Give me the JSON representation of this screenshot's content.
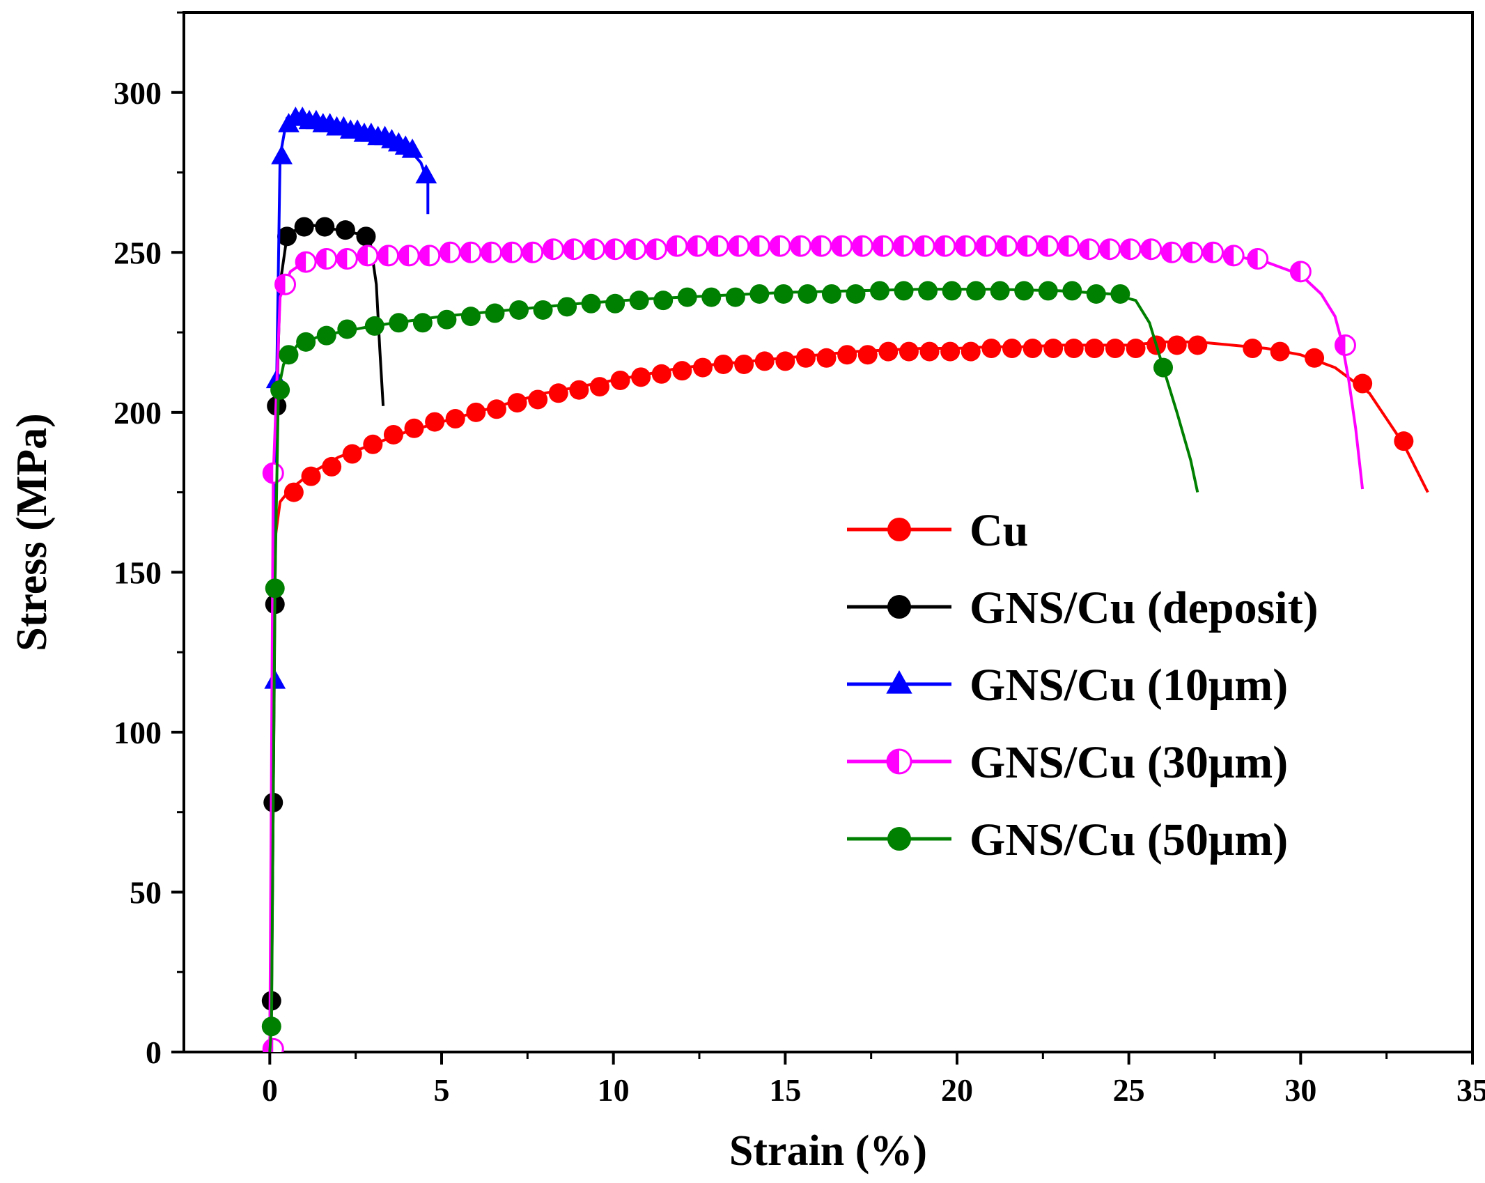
{
  "chart_data": {
    "type": "line",
    "title": "",
    "xlabel": "Strain (%)",
    "ylabel": "Stress (MPa)",
    "xlim": [
      -2.5,
      35
    ],
    "ylim": [
      0,
      325
    ],
    "xticks": [
      0,
      5,
      10,
      15,
      20,
      25,
      30,
      35
    ],
    "yticks": [
      0,
      50,
      100,
      150,
      200,
      250,
      300
    ],
    "legend_position": "right",
    "series": [
      {
        "name": "Cu",
        "color": "#ff0000",
        "marker": "circle",
        "points": [
          [
            0,
            0
          ],
          [
            0.05,
            60
          ],
          [
            0.1,
            120
          ],
          [
            0.15,
            160
          ],
          [
            0.3,
            172
          ],
          [
            0.6,
            176
          ],
          [
            1.2,
            181
          ],
          [
            2,
            186
          ],
          [
            3,
            190
          ],
          [
            4,
            194
          ],
          [
            5,
            197
          ],
          [
            6,
            200
          ],
          [
            7,
            203
          ],
          [
            8,
            206
          ],
          [
            9,
            208
          ],
          [
            10,
            210
          ],
          [
            11,
            212
          ],
          [
            12,
            214
          ],
          [
            13,
            215
          ],
          [
            14,
            216
          ],
          [
            15,
            217
          ],
          [
            16,
            218
          ],
          [
            17,
            219
          ],
          [
            18,
            219.5
          ],
          [
            19,
            220
          ],
          [
            20,
            220
          ],
          [
            21,
            220.5
          ],
          [
            22,
            220.5
          ],
          [
            23,
            221
          ],
          [
            24,
            221
          ],
          [
            25,
            221
          ],
          [
            26,
            222
          ],
          [
            27,
            222
          ],
          [
            28,
            221
          ],
          [
            29,
            220
          ],
          [
            30,
            218
          ],
          [
            31,
            214
          ],
          [
            32,
            206
          ],
          [
            33,
            190
          ],
          [
            33.7,
            175
          ]
        ],
        "marker_points": [
          [
            0.7,
            175
          ],
          [
            1.2,
            180
          ],
          [
            1.8,
            183
          ],
          [
            2.4,
            187
          ],
          [
            3,
            190
          ],
          [
            3.6,
            193
          ],
          [
            4.2,
            195
          ],
          [
            4.8,
            197
          ],
          [
            5.4,
            198
          ],
          [
            6,
            200
          ],
          [
            6.6,
            201
          ],
          [
            7.2,
            203
          ],
          [
            7.8,
            204
          ],
          [
            8.4,
            206
          ],
          [
            9,
            207
          ],
          [
            9.6,
            208
          ],
          [
            10.2,
            210
          ],
          [
            10.8,
            211
          ],
          [
            11.4,
            212
          ],
          [
            12,
            213
          ],
          [
            12.6,
            214
          ],
          [
            13.2,
            215
          ],
          [
            13.8,
            215
          ],
          [
            14.4,
            216
          ],
          [
            15,
            216
          ],
          [
            15.6,
            217
          ],
          [
            16.2,
            217
          ],
          [
            16.8,
            218
          ],
          [
            17.4,
            218
          ],
          [
            18,
            219
          ],
          [
            18.6,
            219
          ],
          [
            19.2,
            219
          ],
          [
            19.8,
            219
          ],
          [
            20.4,
            219
          ],
          [
            21,
            220
          ],
          [
            21.6,
            220
          ],
          [
            22.2,
            220
          ],
          [
            22.8,
            220
          ],
          [
            23.4,
            220
          ],
          [
            24,
            220
          ],
          [
            24.6,
            220
          ],
          [
            25.2,
            220
          ],
          [
            25.8,
            221
          ],
          [
            26.4,
            221
          ],
          [
            27,
            221
          ],
          [
            28.6,
            220
          ],
          [
            29.4,
            219
          ],
          [
            30.4,
            217
          ],
          [
            31.8,
            209
          ],
          [
            33,
            191
          ]
        ]
      },
      {
        "name": "GNS/Cu (deposit)",
        "color": "#000000",
        "marker": "circle",
        "points": [
          [
            0,
            0
          ],
          [
            0.05,
            15
          ],
          [
            0.1,
            78
          ],
          [
            0.15,
            140
          ],
          [
            0.2,
            202
          ],
          [
            0.3,
            240
          ],
          [
            0.5,
            255
          ],
          [
            1,
            259
          ],
          [
            1.5,
            258
          ],
          [
            2,
            257
          ],
          [
            2.5,
            256
          ],
          [
            2.9,
            255
          ],
          [
            3.1,
            240
          ],
          [
            3.2,
            220
          ],
          [
            3.3,
            202
          ]
        ],
        "marker_points": [
          [
            0.05,
            16
          ],
          [
            0.1,
            78
          ],
          [
            0.15,
            140
          ],
          [
            0.2,
            202
          ],
          [
            0.5,
            255
          ],
          [
            1,
            258
          ],
          [
            1.6,
            258
          ],
          [
            2.2,
            257
          ],
          [
            2.8,
            255
          ]
        ]
      },
      {
        "name": "GNS/Cu (10μm)",
        "color": "#0000ff",
        "marker": "triangle",
        "points": [
          [
            0,
            0
          ],
          [
            0.1,
            116
          ],
          [
            0.2,
            210
          ],
          [
            0.3,
            280
          ],
          [
            0.5,
            292
          ],
          [
            1,
            293
          ],
          [
            2,
            290
          ],
          [
            3,
            287
          ],
          [
            4,
            283
          ],
          [
            4.4,
            278
          ],
          [
            4.6,
            272
          ],
          [
            4.6,
            262
          ]
        ],
        "marker_points": [
          [
            0.15,
            116
          ],
          [
            0.2,
            210
          ],
          [
            0.35,
            280
          ],
          [
            0.55,
            290
          ],
          [
            0.75,
            292
          ],
          [
            0.95,
            292
          ],
          [
            1.15,
            291
          ],
          [
            1.35,
            291
          ],
          [
            1.55,
            290
          ],
          [
            1.75,
            290
          ],
          [
            1.95,
            289
          ],
          [
            2.15,
            289
          ],
          [
            2.35,
            288
          ],
          [
            2.55,
            288
          ],
          [
            2.75,
            287
          ],
          [
            2.95,
            287
          ],
          [
            3.15,
            286
          ],
          [
            3.35,
            286
          ],
          [
            3.55,
            285
          ],
          [
            3.75,
            284
          ],
          [
            3.95,
            283
          ],
          [
            4.15,
            282
          ],
          [
            4.55,
            274
          ]
        ]
      },
      {
        "name": "GNS/Cu (30μm)",
        "color": "#ff00ff",
        "marker": "half-circle",
        "points": [
          [
            0,
            0
          ],
          [
            0.1,
            180
          ],
          [
            0.3,
            236
          ],
          [
            0.6,
            244
          ],
          [
            1,
            247
          ],
          [
            2,
            248
          ],
          [
            4,
            249
          ],
          [
            6,
            250
          ],
          [
            8,
            251
          ],
          [
            10,
            251.5
          ],
          [
            12,
            252
          ],
          [
            14,
            252.5
          ],
          [
            16,
            252.5
          ],
          [
            18,
            252.5
          ],
          [
            20,
            252
          ],
          [
            22,
            252
          ],
          [
            24,
            251.5
          ],
          [
            26,
            251
          ],
          [
            28,
            249
          ],
          [
            29,
            247
          ],
          [
            30,
            243
          ],
          [
            30.6,
            237
          ],
          [
            31,
            230
          ],
          [
            31.2,
            222
          ],
          [
            31.4,
            210
          ],
          [
            31.6,
            195
          ],
          [
            31.8,
            176
          ]
        ],
        "marker_points": [
          [
            0.1,
            1
          ],
          [
            0.1,
            181
          ],
          [
            0.45,
            240
          ],
          [
            1.05,
            247
          ],
          [
            1.65,
            248
          ],
          [
            2.25,
            248
          ],
          [
            2.85,
            249
          ],
          [
            3.45,
            249
          ],
          [
            4.05,
            249
          ],
          [
            4.65,
            249
          ],
          [
            5.25,
            250
          ],
          [
            5.85,
            250
          ],
          [
            6.45,
            250
          ],
          [
            7.05,
            250
          ],
          [
            7.65,
            250
          ],
          [
            8.25,
            251
          ],
          [
            8.85,
            251
          ],
          [
            9.45,
            251
          ],
          [
            10.05,
            251
          ],
          [
            10.65,
            251
          ],
          [
            11.25,
            251
          ],
          [
            11.85,
            252
          ],
          [
            12.45,
            252
          ],
          [
            13.05,
            252
          ],
          [
            13.65,
            252
          ],
          [
            14.25,
            252
          ],
          [
            14.85,
            252
          ],
          [
            15.45,
            252
          ],
          [
            16.05,
            252
          ],
          [
            16.65,
            252
          ],
          [
            17.25,
            252
          ],
          [
            17.85,
            252
          ],
          [
            18.45,
            252
          ],
          [
            19.05,
            252
          ],
          [
            19.65,
            252
          ],
          [
            20.25,
            252
          ],
          [
            20.85,
            252
          ],
          [
            21.45,
            252
          ],
          [
            22.05,
            252
          ],
          [
            22.65,
            252
          ],
          [
            23.25,
            252
          ],
          [
            23.85,
            251
          ],
          [
            24.45,
            251
          ],
          [
            25.05,
            251
          ],
          [
            25.65,
            251
          ],
          [
            26.25,
            250
          ],
          [
            26.85,
            250
          ],
          [
            27.45,
            250
          ],
          [
            28.05,
            249
          ],
          [
            28.75,
            248
          ],
          [
            30,
            244
          ],
          [
            31.3,
            221
          ]
        ]
      },
      {
        "name": "GNS/Cu (50μm)",
        "color": "#008000",
        "marker": "circle",
        "points": [
          [
            0,
            0
          ],
          [
            0.05,
            8
          ],
          [
            0.1,
            80
          ],
          [
            0.15,
            145
          ],
          [
            0.25,
            207
          ],
          [
            0.4,
            215
          ],
          [
            0.8,
            221
          ],
          [
            1.5,
            224
          ],
          [
            3,
            227
          ],
          [
            5,
            230
          ],
          [
            7,
            232
          ],
          [
            9,
            234
          ],
          [
            11,
            235.5
          ],
          [
            13,
            236.5
          ],
          [
            15,
            237.5
          ],
          [
            17,
            238
          ],
          [
            19,
            238.5
          ],
          [
            21,
            238.5
          ],
          [
            23,
            238
          ],
          [
            24.5,
            237
          ],
          [
            25.2,
            235
          ],
          [
            25.6,
            228
          ],
          [
            26,
            214
          ],
          [
            26.4,
            200
          ],
          [
            26.8,
            185
          ],
          [
            27,
            175
          ]
        ],
        "marker_points": [
          [
            0.05,
            8
          ],
          [
            0.15,
            145
          ],
          [
            0.3,
            207
          ],
          [
            0.55,
            218
          ],
          [
            1.05,
            222
          ],
          [
            1.65,
            224
          ],
          [
            2.25,
            226
          ],
          [
            3.05,
            227
          ],
          [
            3.75,
            228
          ],
          [
            4.45,
            228
          ],
          [
            5.15,
            229
          ],
          [
            5.85,
            230
          ],
          [
            6.55,
            231
          ],
          [
            7.25,
            232
          ],
          [
            7.95,
            232
          ],
          [
            8.65,
            233
          ],
          [
            9.35,
            234
          ],
          [
            10.05,
            234
          ],
          [
            10.75,
            235
          ],
          [
            11.45,
            235
          ],
          [
            12.15,
            236
          ],
          [
            12.85,
            236
          ],
          [
            13.55,
            236
          ],
          [
            14.25,
            237
          ],
          [
            14.95,
            237
          ],
          [
            15.65,
            237
          ],
          [
            16.35,
            237
          ],
          [
            17.05,
            237
          ],
          [
            17.75,
            238
          ],
          [
            18.45,
            238
          ],
          [
            19.15,
            238
          ],
          [
            19.85,
            238
          ],
          [
            20.55,
            238
          ],
          [
            21.25,
            238
          ],
          [
            21.95,
            238
          ],
          [
            22.65,
            238
          ],
          [
            23.35,
            238
          ],
          [
            24.05,
            237
          ],
          [
            24.75,
            237
          ],
          [
            26,
            214
          ]
        ]
      }
    ]
  }
}
